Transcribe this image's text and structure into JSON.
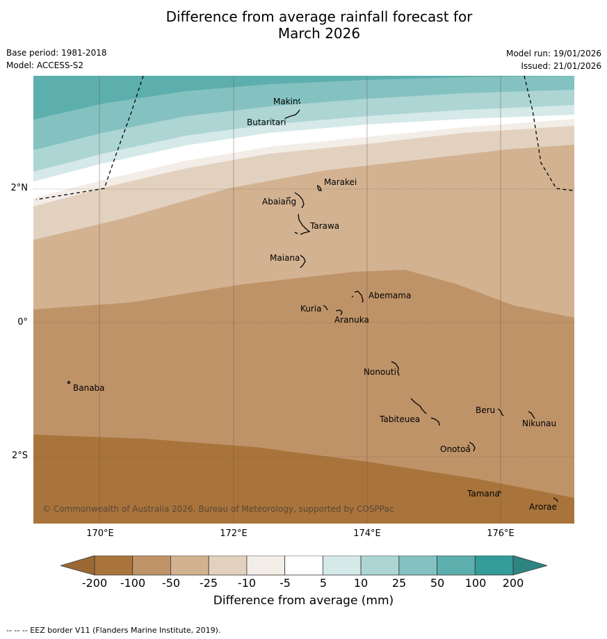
{
  "title": {
    "line1": "Difference from average rainfall forecast for",
    "line2": "March 2026"
  },
  "meta": {
    "base_period": "Base period: 1981-2018",
    "model": "Model: ACCESS-S2",
    "model_run": "Model run: 19/01/2026",
    "issued": "Issued: 21/01/2026"
  },
  "map": {
    "lat_labels": [
      "2°N",
      "0°",
      "2°S"
    ],
    "lon_labels": [
      "170°E",
      "172°E",
      "174°E",
      "176°E"
    ],
    "places": [
      "Makin",
      "Butaritari",
      "Marakei",
      "Abaiang",
      "Tarawa",
      "Maiana",
      "Abemama",
      "Kuria",
      "Aranuka",
      "Nonouti",
      "Banaba",
      "Beru",
      "Tabiteuea",
      "Nikunau",
      "Onotoa",
      "Tamana",
      "Arorae"
    ],
    "copyright": "© Commonwealth of Australia 2026, Bureau of Meteorology, supported by COSPPac"
  },
  "colorbar": {
    "ticks": [
      "-200",
      "-100",
      "-50",
      "-25",
      "-10",
      "-5",
      "5",
      "10",
      "25",
      "50",
      "100",
      "200"
    ],
    "colors": [
      "#a9743c",
      "#bf9368",
      "#d2b291",
      "#e3d1c0",
      "#f2ede6",
      "#ffffff",
      "#d5e9e9",
      "#add5d4",
      "#84c2c1",
      "#5cafad",
      "#349c99"
    ],
    "under_color": "#9b6834",
    "over_color": "#2d8480",
    "label": "Difference from average (mm)"
  },
  "footnote": "--  --  -- EEZ border V11 (Flanders Marine Institute, 2019)."
}
